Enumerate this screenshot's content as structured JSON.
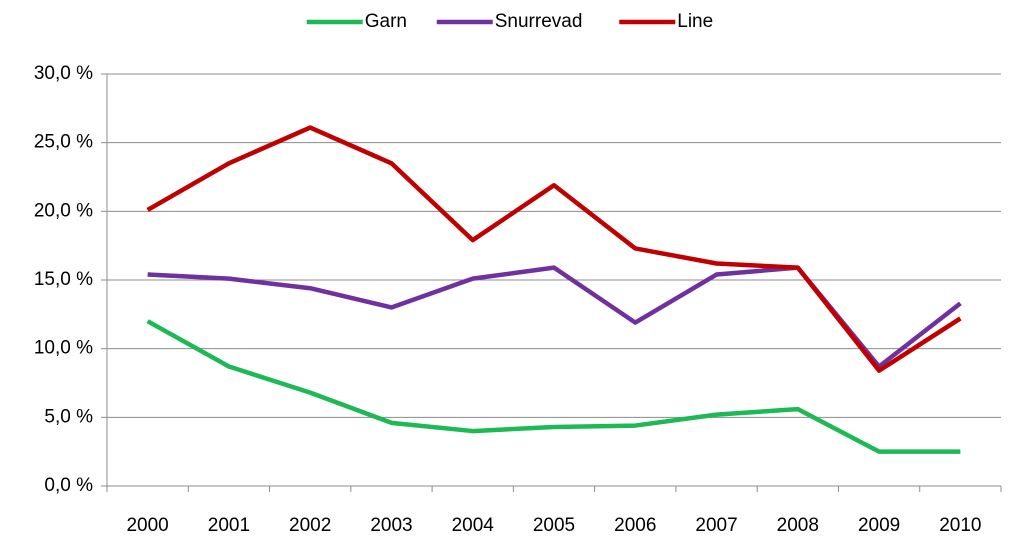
{
  "chart_data": {
    "type": "line",
    "categories": [
      "2000",
      "2001",
      "2002",
      "2003",
      "2004",
      "2005",
      "2006",
      "2007",
      "2008",
      "2009",
      "2010"
    ],
    "series": [
      {
        "name": "Garn",
        "color": "#1db954",
        "values": [
          12.0,
          8.7,
          6.8,
          4.6,
          4.0,
          4.3,
          4.4,
          5.2,
          5.6,
          2.5,
          2.5
        ]
      },
      {
        "name": "Snurrevad",
        "color": "#7030a0",
        "values": [
          15.4,
          15.1,
          14.4,
          13.0,
          15.1,
          15.9,
          11.9,
          15.4,
          15.9,
          8.7,
          13.3
        ]
      },
      {
        "name": "Line",
        "color": "#c00000",
        "values": [
          20.1,
          23.5,
          26.1,
          23.5,
          17.9,
          21.9,
          17.3,
          16.2,
          15.9,
          8.4,
          12.2
        ]
      }
    ],
    "ylim": [
      0,
      30
    ],
    "yticks": [
      {
        "value": 0,
        "label": "0,0 %"
      },
      {
        "value": 5,
        "label": "5,0 %"
      },
      {
        "value": 10,
        "label": "10,0 %"
      },
      {
        "value": 15,
        "label": "15,0 %"
      },
      {
        "value": 20,
        "label": "20,0 %"
      },
      {
        "value": 25,
        "label": "25,0 %"
      },
      {
        "value": 30,
        "label": "30,0 %"
      }
    ],
    "grid": true,
    "legend": "top"
  }
}
